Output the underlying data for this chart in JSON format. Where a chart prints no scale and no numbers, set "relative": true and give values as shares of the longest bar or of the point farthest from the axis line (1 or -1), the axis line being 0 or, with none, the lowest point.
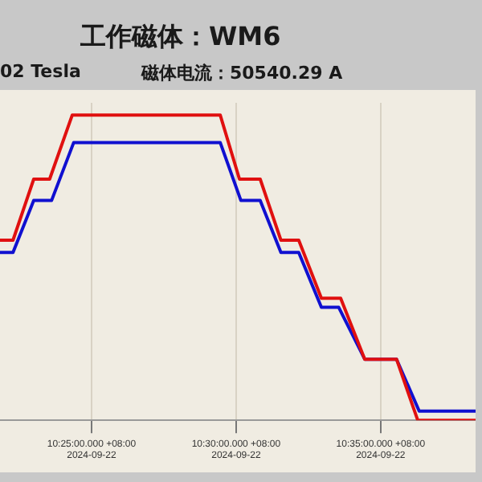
{
  "chart_data": {
    "type": "line",
    "title": "工作磁体：WM6",
    "annotations": [
      "02 Tesla",
      "磁体电流：50540.29 A"
    ],
    "relative": true,
    "grid": "x",
    "legend": false,
    "marker": "none",
    "line_style": "solid",
    "xlim": [
      "2024-09-22T10:21:50",
      "2024-09-22T10:38:17"
    ],
    "xticks": [
      {
        "value": "2024-09-22T10:25",
        "label": "10:25:00.000 +08:00\n2024-09-22"
      },
      {
        "value": "2024-09-22T10:30",
        "label": "10:30:00.000 +08:00\n2024-09-22"
      },
      {
        "value": "2024-09-22T10:35",
        "label": "10:35:00.000 +08:00\n2024-09-22"
      }
    ],
    "series": [
      {
        "color": "#e01010",
        "x": [
          "2024-09-22T10:21:50",
          "2024-09-22T10:22:17",
          "2024-09-22T10:23:00",
          "2024-09-22T10:23:33",
          "2024-09-22T10:24:20",
          "2024-09-22T10:29:27",
          "2024-09-22T10:30:07",
          "2024-09-22T10:30:50",
          "2024-09-22T10:31:33",
          "2024-09-22T10:32:10",
          "2024-09-22T10:32:57",
          "2024-09-22T10:33:37",
          "2024-09-22T10:34:27",
          "2024-09-22T10:35:33",
          "2024-09-22T10:36:17",
          "2024-09-22T10:38:17"
        ],
        "values": [
          0.59,
          0.59,
          0.79,
          0.79,
          1,
          1,
          0.79,
          0.79,
          0.59,
          0.59,
          0.4,
          0.4,
          0.2,
          0.2,
          0,
          0
        ]
      },
      {
        "color": "#1010d0",
        "x": [
          "2024-09-22T10:21:50",
          "2024-09-22T10:22:17",
          "2024-09-22T10:23:00",
          "2024-09-22T10:23:37",
          "2024-09-22T10:24:23",
          "2024-09-22T10:29:27",
          "2024-09-22T10:30:10",
          "2024-09-22T10:30:50",
          "2024-09-22T10:31:33",
          "2024-09-22T10:32:10",
          "2024-09-22T10:32:57",
          "2024-09-22T10:33:33",
          "2024-09-22T10:34:27",
          "2024-09-22T10:35:33",
          "2024-09-22T10:36:20",
          "2024-09-22T10:38:17"
        ],
        "values": [
          0.55,
          0.55,
          0.72,
          0.72,
          0.91,
          0.91,
          0.72,
          0.72,
          0.55,
          0.55,
          0.37,
          0.37,
          0.2,
          0.2,
          0.03,
          0.03
        ]
      }
    ]
  }
}
